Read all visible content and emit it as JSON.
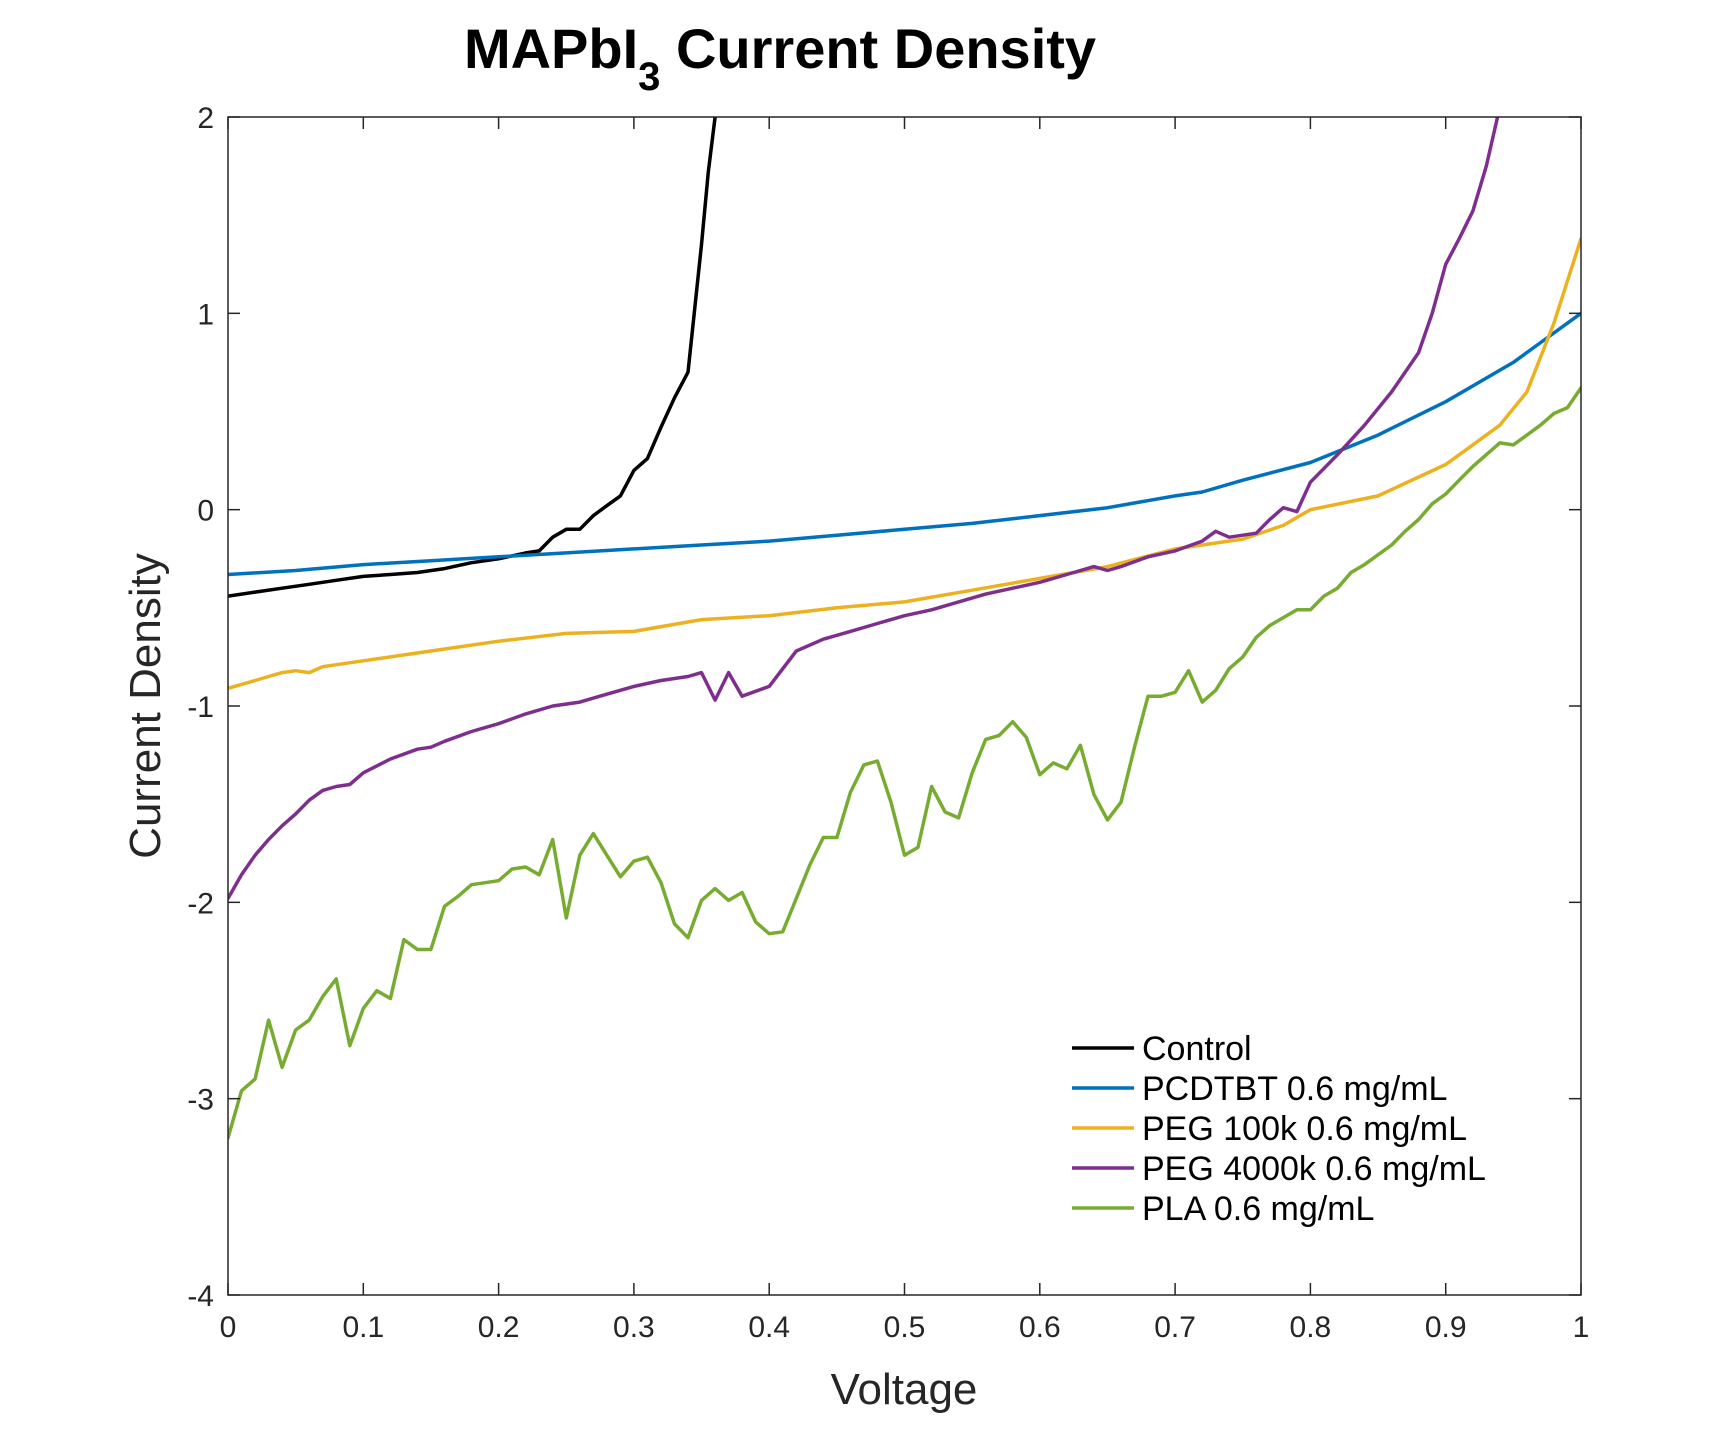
{
  "chart_data": {
    "type": "line",
    "title": "MAPbI",
    "title_subscript": "3",
    "title_rest": " Current Density",
    "xlabel": "Voltage",
    "ylabel": "Current Density",
    "xlim": [
      0,
      1
    ],
    "ylim": [
      -4,
      2
    ],
    "xticks": [
      0,
      0.1,
      0.2,
      0.3,
      0.4,
      0.5,
      0.6,
      0.7,
      0.8,
      0.9,
      1
    ],
    "xtick_labels": [
      "0",
      "0.1",
      "0.2",
      "0.3",
      "0.4",
      "0.5",
      "0.6",
      "0.7",
      "0.8",
      "0.9",
      "1"
    ],
    "yticks": [
      -4,
      -3,
      -2,
      -1,
      0,
      1,
      2
    ],
    "ytick_labels": [
      "-4",
      "-3",
      "-2",
      "-1",
      "0",
      "1",
      "2"
    ],
    "grid": false,
    "legend_position": "bottom-right",
    "series": [
      {
        "name": "Control",
        "color": "#000000",
        "x": [
          0,
          0.02,
          0.04,
          0.06,
          0.08,
          0.1,
          0.12,
          0.14,
          0.16,
          0.18,
          0.2,
          0.22,
          0.23,
          0.24,
          0.25,
          0.26,
          0.27,
          0.28,
          0.29,
          0.3,
          0.31,
          0.32,
          0.33,
          0.34,
          0.35,
          0.355,
          0.36,
          0.364
        ],
        "y": [
          -0.44,
          -0.42,
          -0.4,
          -0.38,
          -0.36,
          -0.34,
          -0.33,
          -0.32,
          -0.3,
          -0.27,
          -0.25,
          -0.22,
          -0.21,
          -0.14,
          -0.1,
          -0.1,
          -0.03,
          0.02,
          0.07,
          0.2,
          0.26,
          0.42,
          0.57,
          0.7,
          1.35,
          1.72,
          2.0,
          2.05
        ]
      },
      {
        "name": "PCDTBT 0.6 mg/mL",
        "color": "#0072BD",
        "x": [
          0,
          0.05,
          0.1,
          0.15,
          0.2,
          0.25,
          0.3,
          0.35,
          0.4,
          0.45,
          0.5,
          0.55,
          0.6,
          0.65,
          0.7,
          0.72,
          0.75,
          0.8,
          0.85,
          0.9,
          0.95,
          1.0
        ],
        "y": [
          -0.33,
          -0.31,
          -0.28,
          -0.26,
          -0.24,
          -0.22,
          -0.2,
          -0.18,
          -0.16,
          -0.13,
          -0.1,
          -0.07,
          -0.03,
          0.01,
          0.07,
          0.09,
          0.15,
          0.24,
          0.38,
          0.55,
          0.75,
          1.0
        ]
      },
      {
        "name": "PEG 100k 0.6 mg/mL",
        "color": "#EDB120",
        "x": [
          0,
          0.01,
          0.02,
          0.03,
          0.04,
          0.05,
          0.06,
          0.07,
          0.1,
          0.15,
          0.2,
          0.25,
          0.3,
          0.35,
          0.4,
          0.45,
          0.5,
          0.55,
          0.6,
          0.65,
          0.7,
          0.75,
          0.78,
          0.8,
          0.85,
          0.9,
          0.92,
          0.94,
          0.96,
          0.98,
          1.0
        ],
        "y": [
          -0.91,
          -0.89,
          -0.87,
          -0.85,
          -0.83,
          -0.82,
          -0.83,
          -0.8,
          -0.77,
          -0.72,
          -0.67,
          -0.63,
          -0.62,
          -0.56,
          -0.54,
          -0.5,
          -0.47,
          -0.41,
          -0.35,
          -0.29,
          -0.2,
          -0.15,
          -0.08,
          0.0,
          0.07,
          0.23,
          0.33,
          0.43,
          0.6,
          0.95,
          1.38
        ]
      },
      {
        "name": "PEG 4000k 0.6 mg/mL",
        "color": "#7E2F8E",
        "x": [
          0,
          0.01,
          0.02,
          0.03,
          0.04,
          0.05,
          0.06,
          0.07,
          0.08,
          0.09,
          0.1,
          0.12,
          0.14,
          0.15,
          0.16,
          0.18,
          0.2,
          0.22,
          0.24,
          0.26,
          0.28,
          0.3,
          0.32,
          0.34,
          0.35,
          0.36,
          0.37,
          0.38,
          0.4,
          0.42,
          0.44,
          0.46,
          0.48,
          0.5,
          0.52,
          0.54,
          0.56,
          0.58,
          0.6,
          0.62,
          0.64,
          0.65,
          0.66,
          0.68,
          0.7,
          0.72,
          0.73,
          0.74,
          0.76,
          0.77,
          0.78,
          0.79,
          0.8,
          0.82,
          0.84,
          0.86,
          0.88,
          0.89,
          0.9,
          0.91,
          0.92,
          0.93,
          0.94
        ],
        "y": [
          -1.98,
          -1.86,
          -1.76,
          -1.68,
          -1.61,
          -1.55,
          -1.48,
          -1.43,
          -1.41,
          -1.4,
          -1.34,
          -1.27,
          -1.22,
          -1.21,
          -1.18,
          -1.13,
          -1.09,
          -1.04,
          -1.0,
          -0.98,
          -0.94,
          -0.9,
          -0.87,
          -0.85,
          -0.83,
          -0.97,
          -0.83,
          -0.95,
          -0.9,
          -0.72,
          -0.66,
          -0.62,
          -0.58,
          -0.54,
          -0.51,
          -0.47,
          -0.43,
          -0.4,
          -0.37,
          -0.33,
          -0.29,
          -0.31,
          -0.29,
          -0.24,
          -0.21,
          -0.16,
          -0.11,
          -0.14,
          -0.12,
          -0.05,
          0.01,
          -0.01,
          0.14,
          0.28,
          0.43,
          0.6,
          0.8,
          1.0,
          1.25,
          1.38,
          1.52,
          1.75,
          2.05
        ]
      },
      {
        "name": "PLA 0.6 mg/mL",
        "color": "#77AC30",
        "x": [
          0,
          0.01,
          0.02,
          0.03,
          0.04,
          0.05,
          0.06,
          0.07,
          0.08,
          0.09,
          0.1,
          0.11,
          0.12,
          0.13,
          0.14,
          0.15,
          0.16,
          0.17,
          0.18,
          0.19,
          0.2,
          0.21,
          0.22,
          0.23,
          0.24,
          0.25,
          0.26,
          0.27,
          0.28,
          0.29,
          0.3,
          0.31,
          0.32,
          0.33,
          0.34,
          0.35,
          0.36,
          0.37,
          0.38,
          0.39,
          0.4,
          0.41,
          0.42,
          0.43,
          0.44,
          0.45,
          0.46,
          0.47,
          0.48,
          0.49,
          0.5,
          0.51,
          0.52,
          0.53,
          0.54,
          0.55,
          0.56,
          0.57,
          0.58,
          0.59,
          0.6,
          0.61,
          0.62,
          0.63,
          0.64,
          0.65,
          0.66,
          0.67,
          0.68,
          0.69,
          0.7,
          0.71,
          0.72,
          0.73,
          0.74,
          0.75,
          0.76,
          0.77,
          0.78,
          0.79,
          0.8,
          0.81,
          0.82,
          0.83,
          0.84,
          0.85,
          0.86,
          0.87,
          0.88,
          0.89,
          0.9,
          0.91,
          0.92,
          0.93,
          0.94,
          0.95,
          0.96,
          0.97,
          0.98,
          0.99,
          1.0
        ],
        "y": [
          -3.2,
          -2.96,
          -2.9,
          -2.6,
          -2.84,
          -2.65,
          -2.6,
          -2.48,
          -2.39,
          -2.73,
          -2.54,
          -2.45,
          -2.49,
          -2.19,
          -2.24,
          -2.24,
          -2.02,
          -1.97,
          -1.91,
          -1.9,
          -1.89,
          -1.83,
          -1.82,
          -1.86,
          -1.68,
          -2.08,
          -1.76,
          -1.65,
          -1.76,
          -1.87,
          -1.79,
          -1.77,
          -1.9,
          -2.11,
          -2.18,
          -1.99,
          -1.93,
          -1.99,
          -1.95,
          -2.1,
          -2.16,
          -2.15,
          -1.98,
          -1.81,
          -1.67,
          -1.67,
          -1.44,
          -1.3,
          -1.28,
          -1.49,
          -1.76,
          -1.72,
          -1.41,
          -1.54,
          -1.57,
          -1.34,
          -1.17,
          -1.15,
          -1.08,
          -1.16,
          -1.35,
          -1.29,
          -1.32,
          -1.2,
          -1.45,
          -1.58,
          -1.49,
          -1.21,
          -0.95,
          -0.95,
          -0.93,
          -0.82,
          -0.98,
          -0.92,
          -0.81,
          -0.75,
          -0.65,
          -0.59,
          -0.55,
          -0.51,
          -0.51,
          -0.44,
          -0.4,
          -0.32,
          -0.28,
          -0.23,
          -0.18,
          -0.11,
          -0.05,
          0.03,
          0.08,
          0.15,
          0.22,
          0.28,
          0.34,
          0.33,
          0.38,
          0.43,
          0.49,
          0.52,
          0.62
        ]
      }
    ]
  }
}
